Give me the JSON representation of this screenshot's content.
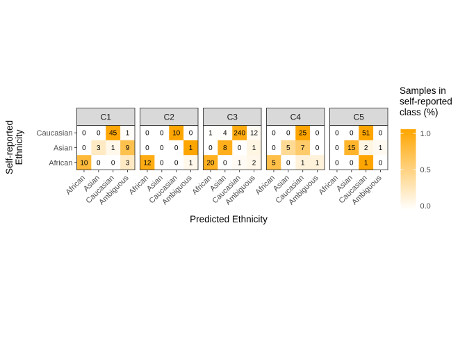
{
  "chart_data": {
    "type": "heatmap",
    "xlabel": "Predicted Ethnicity",
    "ylabel_lines": [
      "Self-reported",
      "Ethnicity"
    ],
    "x_categories": [
      "African",
      "Asian",
      "Caucasian",
      "Ambiguous"
    ],
    "y_categories": [
      "Caucasian",
      "Asian",
      "African"
    ],
    "legend": {
      "title_lines": [
        "Samples in",
        "self-reported",
        "class (%)"
      ],
      "ticks": [
        1.0,
        0.5,
        0.0
      ],
      "tick_labels": [
        "1.0",
        "0.5",
        "0.0"
      ],
      "range": [
        0,
        1
      ],
      "color_low": "#ffffff",
      "color_high": "#ffa500",
      "placement": "right"
    },
    "facets": [
      {
        "name": "C1",
        "rows": {
          "Caucasian": [
            0,
            0,
            45,
            1
          ],
          "Asian": [
            0,
            3,
            1,
            9
          ],
          "African": [
            10,
            0,
            0,
            3
          ]
        }
      },
      {
        "name": "C2",
        "rows": {
          "Caucasian": [
            0,
            0,
            10,
            0
          ],
          "Asian": [
            0,
            0,
            0,
            1
          ],
          "African": [
            12,
            0,
            0,
            1
          ]
        }
      },
      {
        "name": "C3",
        "rows": {
          "Caucasian": [
            1,
            4,
            240,
            12
          ],
          "Asian": [
            0,
            8,
            0,
            1
          ],
          "African": [
            20,
            0,
            1,
            2
          ]
        }
      },
      {
        "name": "C4",
        "rows": {
          "Caucasian": [
            0,
            0,
            25,
            0
          ],
          "Asian": [
            0,
            5,
            7,
            0
          ],
          "African": [
            5,
            0,
            1,
            1
          ]
        }
      },
      {
        "name": "C5",
        "rows": {
          "Caucasian": [
            0,
            0,
            51,
            0
          ],
          "Asian": [
            0,
            15,
            2,
            1
          ],
          "African": [
            0,
            0,
            1,
            0
          ]
        }
      }
    ]
  }
}
